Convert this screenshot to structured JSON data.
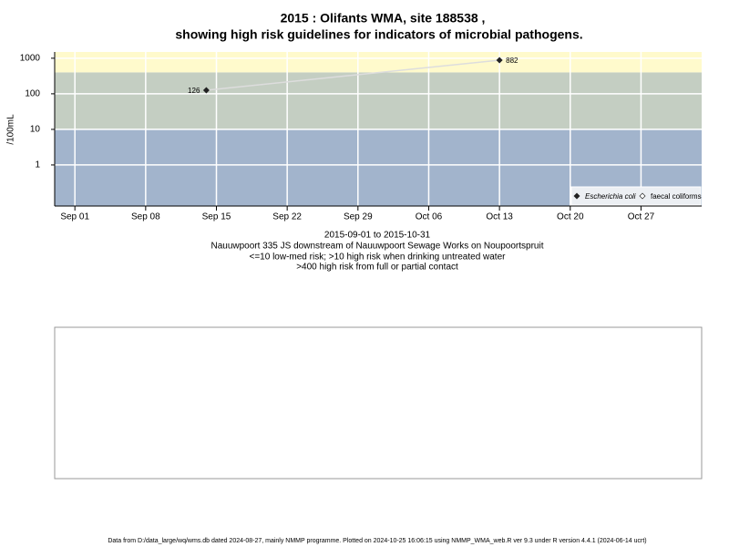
{
  "chart_data": {
    "type": "line",
    "title": [
      "2015 : Olifants WMA, site 188538 ,",
      "showing high risk guidelines for indicators of microbial pathogens."
    ],
    "subtitle": [
      "2015-09-01 to 2015-10-31",
      "Nauuwpoort 335 JS downstream of Nauuwpoort Sewage Works on Noupoortspruit",
      "<=10 low-med risk; >10 high risk when drinking untreated water",
      ">400 high risk from full or partial contact"
    ],
    "ylabel": "/100mL",
    "x": [
      "2015-09-14",
      "2015-10-13"
    ],
    "series": [
      {
        "name": "Escherichia coli",
        "color": "#222222",
        "line_color": "#dddddd",
        "values": [
          126,
          882
        ]
      },
      {
        "name": "faecal coliforms",
        "color": "#ffffff",
        "values": [
          null,
          null
        ]
      }
    ],
    "guidelines": [
      10,
      400
    ],
    "band_colors": [
      "#a2b4cc",
      "#c4cec2",
      "#fffacc"
    ],
    "xlim": [
      "2015-08-30",
      "2015-11-02"
    ],
    "xticks": [
      {
        "value": "2015-09-01",
        "label": "Sep 01"
      },
      {
        "value": "2015-09-08",
        "label": "Sep 08"
      },
      {
        "value": "2015-09-15",
        "label": "Sep 15"
      },
      {
        "value": "2015-09-22",
        "label": "Sep 22"
      },
      {
        "value": "2015-09-29",
        "label": "Sep 29"
      },
      {
        "value": "2015-10-06",
        "label": "Oct 06"
      },
      {
        "value": "2015-10-13",
        "label": "Oct 13"
      },
      {
        "value": "2015-10-20",
        "label": "Oct 20"
      },
      {
        "value": "2015-10-27",
        "label": "Oct 27"
      }
    ],
    "ylim": [
      0.07,
      1500
    ],
    "yticks": [
      1,
      10,
      100,
      1000
    ],
    "log_y": true,
    "grid": true,
    "legend": "bottom-right",
    "footer": "Data from D:/data_large/wq/wms.db dated 2024-08-27, mainly NMMP programme. Plotted on 2024-10-25 16:06:15 using NMMP_WMA_web.R ver 9.3 under R version 4.4.1 (2024-06-14 ucrt)"
  }
}
